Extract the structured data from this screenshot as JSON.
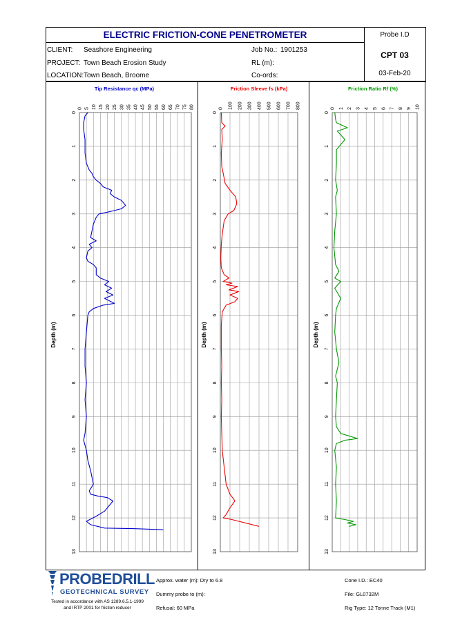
{
  "header": {
    "title": "ELECTRIC FRICTION-CONE PENETROMETER",
    "probe_id_label": "Probe I.D",
    "probe_id": "CPT 03",
    "date": "03-Feb-20",
    "client_label": "CLIENT:",
    "client": "Seashore Engineering",
    "project_label": "PROJECT:",
    "project": "Town Beach Erosion Study",
    "location_label": "LOCATION:",
    "location": "Town Beach, Broome",
    "job_label": "Job No.:",
    "job": "1901253",
    "rl_label": "RL (m):",
    "coords_label": "Co-ords:"
  },
  "footer": {
    "logo_main": "PROBEDRILL",
    "logo_sub": "GEOTECHNICAL SURVEY",
    "tested_line1": "Tested in accordance with AS 1289.6.5.1-1999",
    "tested_line2": "and IRTP 2001 for friction reducer",
    "water": "Approx. water (m): Dry to 6.8",
    "dummy": "Dummy probe to (m):",
    "refusal": "Refusal: 60 MPa",
    "cone": "Cone I.D.: EC40",
    "file": "File: GL0732M",
    "rig": "Rig Type: 12 Tonne Track (M1)"
  },
  "colors": {
    "tip": "#0000cc",
    "friction": "#ee0000",
    "ratio": "#009900",
    "title_blue": "#00008b",
    "logo_blue": "#1f4e9a"
  },
  "chart_data": [
    {
      "type": "line",
      "title": "Tip Resistance qc (MPa)",
      "ylabel": "Depth (m)",
      "x_ticks": [
        "0",
        "5",
        "10",
        "15",
        "20",
        "25",
        "30",
        "35",
        "40",
        "45",
        "50",
        "55",
        "60",
        "65",
        "70",
        "75",
        "80"
      ],
      "y_ticks": [
        "0",
        "1",
        "2",
        "3",
        "4",
        "5",
        "6",
        "7",
        "8",
        "9",
        "10",
        "11",
        "12",
        "13"
      ],
      "xlim": [
        0,
        80
      ],
      "ylim": [
        0,
        13
      ],
      "y_inverted": true,
      "grid": true,
      "points": [
        [
          6,
          0
        ],
        [
          4,
          0.1
        ],
        [
          3,
          0.3
        ],
        [
          3,
          0.5
        ],
        [
          4,
          0.8
        ],
        [
          4,
          1.2
        ],
        [
          5,
          1.5
        ],
        [
          7,
          1.7
        ],
        [
          9,
          1.8
        ],
        [
          10,
          1.9
        ],
        [
          12,
          2.0
        ],
        [
          15,
          2.1
        ],
        [
          17,
          2.2
        ],
        [
          20,
          2.25
        ],
        [
          23,
          2.3
        ],
        [
          22,
          2.4
        ],
        [
          25,
          2.5
        ],
        [
          30,
          2.6
        ],
        [
          33,
          2.75
        ],
        [
          30,
          2.85
        ],
        [
          25,
          2.9
        ],
        [
          20,
          2.95
        ],
        [
          14,
          3.0
        ],
        [
          12,
          3.1
        ],
        [
          10,
          3.3
        ],
        [
          9,
          3.5
        ],
        [
          8,
          3.7
        ],
        [
          12,
          3.8
        ],
        [
          7,
          3.9
        ],
        [
          9,
          4.0
        ],
        [
          6,
          4.1
        ],
        [
          5,
          4.3
        ],
        [
          6,
          4.4
        ],
        [
          10,
          4.5
        ],
        [
          12,
          4.6
        ],
        [
          12,
          4.8
        ],
        [
          15,
          4.9
        ],
        [
          21,
          5.0
        ],
        [
          18,
          5.1
        ],
        [
          23,
          5.2
        ],
        [
          19,
          5.3
        ],
        [
          24,
          5.4
        ],
        [
          18,
          5.5
        ],
        [
          25,
          5.65
        ],
        [
          17,
          5.7
        ],
        [
          10,
          5.8
        ],
        [
          7,
          5.9
        ],
        [
          6,
          6.0
        ],
        [
          5,
          6.5
        ],
        [
          4,
          7.0
        ],
        [
          4,
          7.5
        ],
        [
          5,
          8.0
        ],
        [
          4,
          8.5
        ],
        [
          5,
          9.0
        ],
        [
          4,
          9.5
        ],
        [
          3,
          9.7
        ],
        [
          5,
          10.0
        ],
        [
          6,
          10.3
        ],
        [
          8,
          10.6
        ],
        [
          10,
          11.0
        ],
        [
          7,
          11.2
        ],
        [
          8,
          11.3
        ],
        [
          13,
          11.35
        ],
        [
          20,
          11.4
        ],
        [
          24,
          11.5
        ],
        [
          22,
          11.6
        ],
        [
          18,
          11.8
        ],
        [
          12,
          11.95
        ],
        [
          5,
          12.1
        ],
        [
          8,
          12.2
        ],
        [
          18,
          12.3
        ],
        [
          40,
          12.32
        ],
        [
          60,
          12.35
        ]
      ]
    },
    {
      "type": "line",
      "title": "Friction Sleeve fs (kPa)",
      "ylabel": "Depth (m)",
      "x_ticks": [
        "0",
        "100",
        "200",
        "300",
        "400",
        "500",
        "600",
        "700",
        "800"
      ],
      "y_ticks": [
        "0",
        "1",
        "2",
        "3",
        "4",
        "5",
        "6",
        "7",
        "8",
        "9",
        "10",
        "11",
        "12",
        "13"
      ],
      "xlim": [
        0,
        800
      ],
      "ylim": [
        0,
        13
      ],
      "y_inverted": true,
      "grid": true,
      "points": [
        [
          10,
          0
        ],
        [
          15,
          0.3
        ],
        [
          50,
          0.4
        ],
        [
          15,
          0.5
        ],
        [
          20,
          0.8
        ],
        [
          10,
          1.2
        ],
        [
          15,
          1.6
        ],
        [
          30,
          1.8
        ],
        [
          50,
          2.1
        ],
        [
          100,
          2.3
        ],
        [
          160,
          2.5
        ],
        [
          170,
          2.7
        ],
        [
          140,
          2.9
        ],
        [
          80,
          3.0
        ],
        [
          40,
          3.2
        ],
        [
          20,
          3.6
        ],
        [
          10,
          3.9
        ],
        [
          5,
          4.3
        ],
        [
          10,
          4.6
        ],
        [
          40,
          4.8
        ],
        [
          90,
          4.9
        ],
        [
          30,
          5.0
        ],
        [
          120,
          5.05
        ],
        [
          60,
          5.1
        ],
        [
          180,
          5.15
        ],
        [
          90,
          5.25
        ],
        [
          190,
          5.3
        ],
        [
          100,
          5.4
        ],
        [
          180,
          5.5
        ],
        [
          150,
          5.6
        ],
        [
          60,
          5.7
        ],
        [
          20,
          5.9
        ],
        [
          10,
          6.3
        ],
        [
          10,
          7.0
        ],
        [
          15,
          7.5
        ],
        [
          10,
          8.0
        ],
        [
          15,
          8.5
        ],
        [
          10,
          9.0
        ],
        [
          15,
          9.5
        ],
        [
          20,
          10.0
        ],
        [
          40,
          10.5
        ],
        [
          60,
          11.0
        ],
        [
          100,
          11.3
        ],
        [
          140,
          11.45
        ],
        [
          150,
          11.5
        ],
        [
          100,
          11.7
        ],
        [
          60,
          11.9
        ],
        [
          30,
          12.0
        ],
        [
          120,
          12.05
        ],
        [
          400,
          12.25
        ]
      ]
    },
    {
      "type": "line",
      "title": "Friction Ratio Rf (%)",
      "ylabel": "Depth (m)",
      "x_ticks": [
        "0",
        "1",
        "2",
        "3",
        "4",
        "5",
        "6",
        "7",
        "8",
        "9",
        "10"
      ],
      "y_ticks": [
        "0",
        "1",
        "2",
        "3",
        "4",
        "5",
        "6",
        "7",
        "8",
        "9",
        "10",
        "11",
        "12",
        "13"
      ],
      "xlim": [
        0,
        10
      ],
      "ylim": [
        0,
        13
      ],
      "y_inverted": true,
      "grid": true,
      "points": [
        [
          0.3,
          0
        ],
        [
          0.4,
          0.2
        ],
        [
          0.5,
          0.3
        ],
        [
          1.8,
          0.45
        ],
        [
          0.6,
          0.55
        ],
        [
          1.5,
          0.8
        ],
        [
          0.5,
          1.1
        ],
        [
          0.5,
          1.5
        ],
        [
          0.4,
          2.0
        ],
        [
          0.6,
          2.3
        ],
        [
          0.4,
          2.5
        ],
        [
          0.5,
          3.0
        ],
        [
          0.3,
          3.5
        ],
        [
          0.2,
          4.0
        ],
        [
          0.4,
          4.5
        ],
        [
          0.8,
          4.7
        ],
        [
          0.3,
          4.9
        ],
        [
          1.0,
          5.0
        ],
        [
          0.3,
          5.2
        ],
        [
          1.0,
          5.5
        ],
        [
          0.5,
          5.8
        ],
        [
          0.4,
          6.0
        ],
        [
          0.3,
          6.5
        ],
        [
          0.5,
          7.0
        ],
        [
          0.8,
          7.4
        ],
        [
          0.4,
          7.8
        ],
        [
          0.6,
          8.0
        ],
        [
          0.5,
          8.5
        ],
        [
          0.4,
          9.0
        ],
        [
          0.5,
          9.3
        ],
        [
          1.0,
          9.5
        ],
        [
          3.0,
          9.65
        ],
        [
          1.5,
          9.7
        ],
        [
          0.5,
          9.8
        ],
        [
          0.3,
          10.0
        ],
        [
          0.5,
          10.5
        ],
        [
          0.4,
          11.0
        ],
        [
          0.5,
          11.5
        ],
        [
          0.4,
          12.0
        ],
        [
          1.5,
          12.05
        ],
        [
          2.5,
          12.1
        ],
        [
          1.8,
          12.15
        ],
        [
          2.8,
          12.2
        ],
        [
          2.0,
          12.25
        ]
      ]
    }
  ]
}
